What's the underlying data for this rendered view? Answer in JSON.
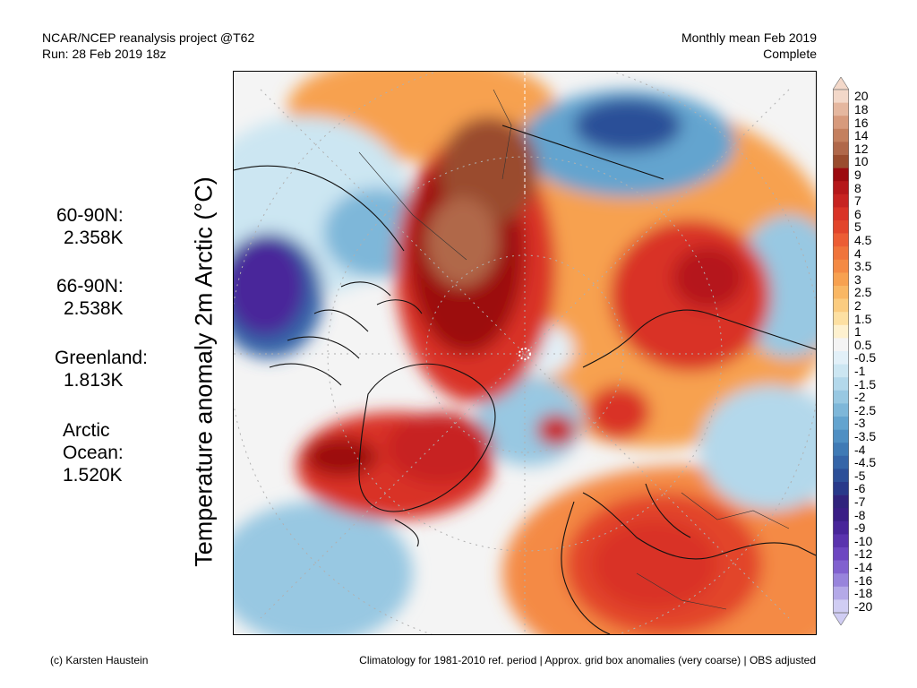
{
  "header": {
    "line1_left": "NCAR/NCEP reanalysis project @T62",
    "line2_left": "Run: 28 Feb 2019 18z",
    "line1_right": "Monthly mean Feb 2019",
    "line2_right": "Complete"
  },
  "axis_title": "Temperature anomaly 2m Arctic (°C)",
  "stats": [
    {
      "name": "60-90N:",
      "value": "2.358K"
    },
    {
      "name": "66-90N:",
      "value": "2.538K"
    },
    {
      "name": "Greenland:",
      "value": "1.813K"
    },
    {
      "name_line1": "Arctic",
      "name_line2": "Ocean:",
      "value": "1.520K"
    }
  ],
  "colorbar": {
    "unit": "°C",
    "labels": [
      "20",
      "18",
      "16",
      "14",
      "12",
      "10",
      "9",
      "8",
      "7",
      "6",
      "5",
      "4.5",
      "4",
      "3.5",
      "3",
      "2.5",
      "2",
      "1.5",
      "1",
      "0.5",
      "-0.5",
      "-1",
      "-1.5",
      "-2",
      "-2.5",
      "-3",
      "-3.5",
      "-4",
      "-4.5",
      "-5",
      "-6",
      "-7",
      "-8",
      "-9",
      "-10",
      "-12",
      "-14",
      "-16",
      "-18",
      "-20"
    ],
    "colors": [
      "#f3d8c9",
      "#e5b79f",
      "#d79a7c",
      "#c4805f",
      "#b0684a",
      "#9a4c2e",
      "#9c0a0f",
      "#b5171a",
      "#c72321",
      "#d93327",
      "#e2452b",
      "#ec5d34",
      "#f0743b",
      "#f48a44",
      "#f7a150",
      "#f9b764",
      "#fbcc80",
      "#fde0a2",
      "#fef1cf",
      "#f4f4f4",
      "#e2f0f8",
      "#cce6f2",
      "#b3d8eb",
      "#98c8e2",
      "#7eb7d9",
      "#64a4cf",
      "#4f8fc3",
      "#3f7ab5",
      "#3565a8",
      "#2c4f98",
      "#28398a",
      "#30237d",
      "#3a1e86",
      "#48259a",
      "#5a33ae",
      "#6d46c1",
      "#8161cf",
      "#9884dc",
      "#b4a9e8",
      "#d0cdf3"
    ]
  },
  "footer": {
    "left": "(c) Karsten Haustein",
    "right": "Climatology for 1981-2010 ref. period | Approx. grid box anomalies (very coarse) | OBS adjusted"
  }
}
